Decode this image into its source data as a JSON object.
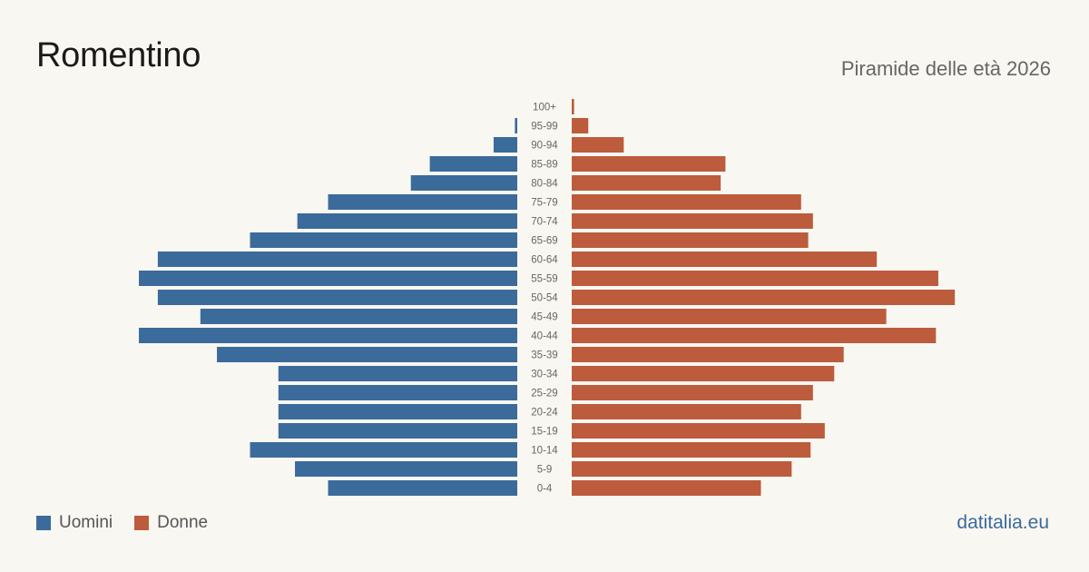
{
  "header": {
    "title": "Romentino",
    "subtitle": "Piramide delle età 2026"
  },
  "legend": {
    "men_label": "Uomini",
    "women_label": "Donne"
  },
  "footer": {
    "source": "datitalia.eu"
  },
  "colors": {
    "men": "#3b6b9b",
    "women": "#bc5c3c",
    "background": "#f9f7f2"
  },
  "chart_data": {
    "type": "bar",
    "orientation": "horizontal-pyramid",
    "categories": [
      "100+",
      "95-99",
      "90-94",
      "85-89",
      "80-84",
      "75-79",
      "70-74",
      "65-69",
      "60-64",
      "55-59",
      "50-54",
      "45-49",
      "40-44",
      "35-39",
      "30-34",
      "25-29",
      "20-24",
      "15-19",
      "10-14",
      "5-9",
      "0-4"
    ],
    "series": [
      {
        "name": "Uomini",
        "color": "#3b6b9b",
        "values": [
          0,
          1,
          10,
          37,
          45,
          80,
          93,
          113,
          152,
          160,
          152,
          134,
          160,
          127,
          101,
          101,
          101,
          101,
          113,
          94,
          80
        ]
      },
      {
        "name": "Donne",
        "color": "#bc5c3c",
        "values": [
          1,
          7,
          22,
          65,
          63,
          97,
          102,
          100,
          129,
          155,
          162,
          133,
          154,
          115,
          111,
          102,
          97,
          107,
          101,
          93,
          80
        ]
      }
    ],
    "xlim": [
      0,
      165
    ],
    "grid": false,
    "legend_position": "bottom-left"
  }
}
